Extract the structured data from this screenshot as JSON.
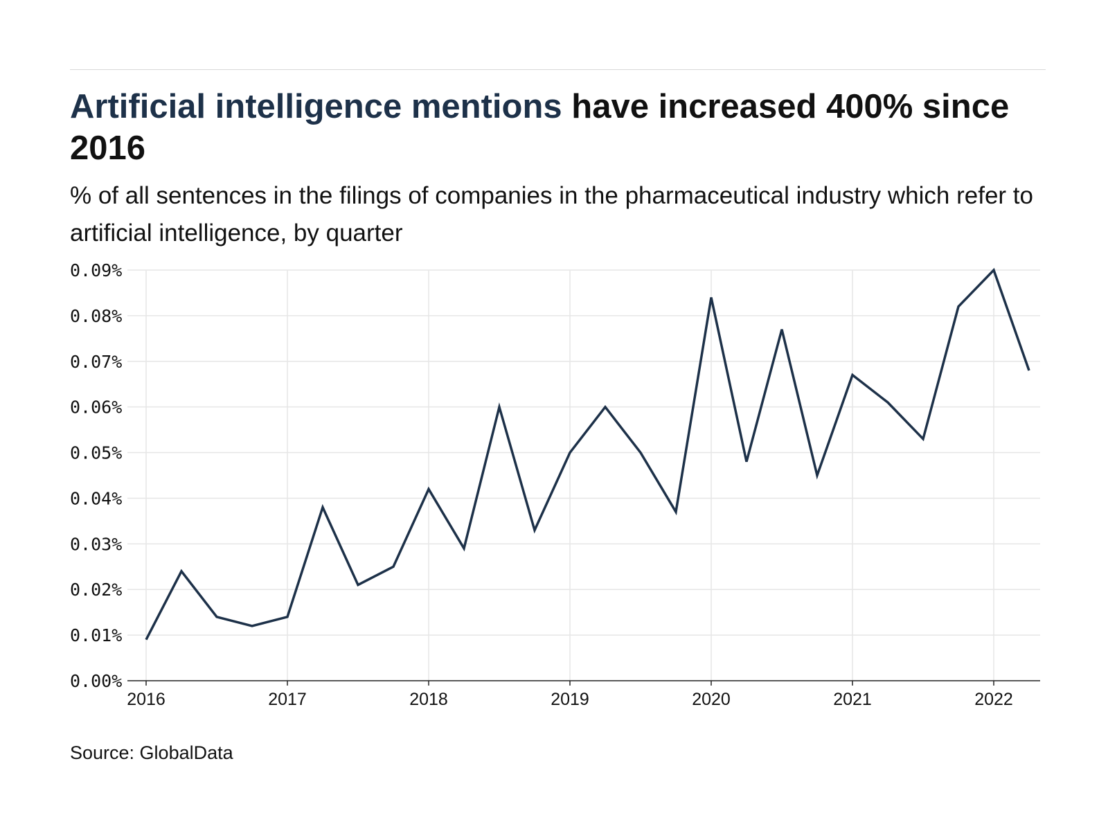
{
  "header": {
    "title_highlight": "Artificial intelligence mentions",
    "title_rest": " have increased 400% since 2016",
    "subtitle": "% of all sentences in the filings of companies in the pharmaceutical industry which refer to artificial intelligence, by quarter"
  },
  "source": "Source: GlobalData",
  "colors": {
    "accent": "#1d3149",
    "line": "#1d3149",
    "grid": "#e6e6e6",
    "axis": "#222222"
  },
  "chart_data": {
    "type": "line",
    "title": "Artificial intelligence mentions have increased 400% since 2016",
    "subtitle": "% of all sentences in the filings of companies in the pharmaceutical industry which refer to artificial intelligence, by quarter",
    "xlabel": "",
    "ylabel": "",
    "grid": true,
    "ylim": [
      0,
      0.09
    ],
    "xlim": [
      2016,
      2022.25
    ],
    "yticks": [
      0,
      0.01,
      0.02,
      0.03,
      0.04,
      0.05,
      0.06,
      0.07,
      0.08,
      0.09
    ],
    "ytick_labels": [
      "0.00%",
      "0.01%",
      "0.02%",
      "0.03%",
      "0.04%",
      "0.05%",
      "0.06%",
      "0.07%",
      "0.08%",
      "0.09%"
    ],
    "xticks": [
      2016,
      2017,
      2018,
      2019,
      2020,
      2021,
      2022
    ],
    "xtick_labels": [
      "2016",
      "2017",
      "2018",
      "2019",
      "2020",
      "2021",
      "2022"
    ],
    "x": [
      "2016 Q1",
      "2016 Q2",
      "2016 Q3",
      "2016 Q4",
      "2017 Q1",
      "2017 Q2",
      "2017 Q3",
      "2017 Q4",
      "2018 Q1",
      "2018 Q2",
      "2018 Q3",
      "2018 Q4",
      "2019 Q1",
      "2019 Q2",
      "2019 Q3",
      "2019 Q4",
      "2020 Q1",
      "2020 Q2",
      "2020 Q3",
      "2020 Q4",
      "2021 Q1",
      "2021 Q2",
      "2021 Q3",
      "2021 Q4",
      "2022 Q1",
      "2022 Q2"
    ],
    "series": [
      {
        "values": [
          0.009,
          0.024,
          0.014,
          0.012,
          0.014,
          0.038,
          0.021,
          0.025,
          0.042,
          0.029,
          0.06,
          0.033,
          0.05,
          0.06,
          0.05,
          0.037,
          0.084,
          0.048,
          0.077,
          0.045,
          0.067,
          0.061,
          0.053,
          0.082,
          0.09,
          0.068
        ]
      }
    ]
  }
}
